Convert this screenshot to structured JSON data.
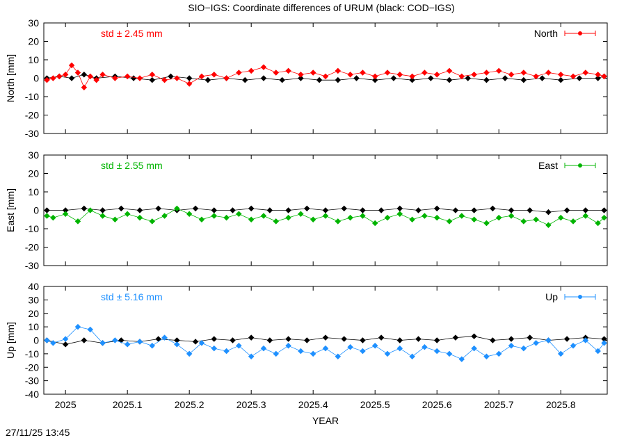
{
  "title": "SIO−IGS: Coordinate differences of URUM (black: COD−IGS)",
  "footer": {
    "timestamp": "27/11/25 13:45"
  },
  "chart_data": [
    {
      "type": "line",
      "name": "north",
      "ylabel": "North [mm]",
      "ylim": [
        -30,
        30
      ],
      "yticks": [
        -30,
        -20,
        -10,
        0,
        10,
        20,
        30
      ],
      "xlim": [
        2024.965,
        2025.875
      ],
      "std_label": "std ± 2.45 mm",
      "color": "#ff0000",
      "grid": false,
      "legend": "top-right",
      "series": [
        {
          "name": "North",
          "color": "#ff0000",
          "x": [
            2024.97,
            2024.98,
            2024.99,
            2025.0,
            2025.01,
            2025.02,
            2025.03,
            2025.04,
            2025.05,
            2025.06,
            2025.08,
            2025.1,
            2025.12,
            2025.14,
            2025.16,
            2025.18,
            2025.2,
            2025.22,
            2025.24,
            2025.26,
            2025.28,
            2025.3,
            2025.32,
            2025.34,
            2025.36,
            2025.38,
            2025.4,
            2025.42,
            2025.44,
            2025.46,
            2025.48,
            2025.5,
            2025.52,
            2025.54,
            2025.56,
            2025.58,
            2025.6,
            2025.62,
            2025.64,
            2025.66,
            2025.68,
            2025.7,
            2025.72,
            2025.74,
            2025.76,
            2025.78,
            2025.8,
            2025.82,
            2025.84,
            2025.86,
            2025.87
          ],
          "y": [
            -1,
            0,
            1,
            2,
            7,
            3,
            -5,
            1,
            -1,
            2,
            0,
            1,
            0,
            2,
            -1,
            0,
            -3,
            1,
            2,
            0,
            3,
            4,
            6,
            3,
            4,
            2,
            3,
            1,
            4,
            2,
            3,
            1,
            3,
            2,
            1,
            3,
            2,
            4,
            1,
            2,
            3,
            4,
            2,
            3,
            1,
            3,
            2,
            1,
            3,
            2,
            1
          ]
        },
        {
          "name": "COD−IGS",
          "color": "#000000",
          "x": [
            2024.97,
            2024.99,
            2025.01,
            2025.03,
            2025.05,
            2025.08,
            2025.11,
            2025.14,
            2025.17,
            2025.2,
            2025.23,
            2025.26,
            2025.29,
            2025.32,
            2025.35,
            2025.38,
            2025.41,
            2025.44,
            2025.47,
            2025.5,
            2025.53,
            2025.56,
            2025.59,
            2025.62,
            2025.65,
            2025.68,
            2025.71,
            2025.74,
            2025.77,
            2025.8,
            2025.83,
            2025.86,
            2025.87
          ],
          "y": [
            0,
            1,
            0,
            2,
            0,
            1,
            0,
            -1,
            1,
            0,
            -1,
            0,
            -1,
            0,
            -1,
            0,
            -1,
            -1,
            0,
            -1,
            0,
            -1,
            0,
            -1,
            0,
            -1,
            0,
            -1,
            0,
            -1,
            0,
            0,
            1
          ]
        }
      ]
    },
    {
      "type": "line",
      "name": "east",
      "ylabel": "East [mm]",
      "ylim": [
        -30,
        30
      ],
      "yticks": [
        -30,
        -20,
        -10,
        0,
        10,
        20,
        30
      ],
      "xlim": [
        2024.965,
        2025.875
      ],
      "std_label": "std ± 2.55 mm",
      "color": "#00b400",
      "grid": false,
      "legend": "top-right",
      "series": [
        {
          "name": "East",
          "color": "#00b400",
          "x": [
            2024.97,
            2024.98,
            2025.0,
            2025.02,
            2025.04,
            2025.06,
            2025.08,
            2025.1,
            2025.12,
            2025.14,
            2025.16,
            2025.18,
            2025.2,
            2025.22,
            2025.24,
            2025.26,
            2025.28,
            2025.3,
            2025.32,
            2025.34,
            2025.36,
            2025.38,
            2025.4,
            2025.42,
            2025.44,
            2025.46,
            2025.48,
            2025.5,
            2025.52,
            2025.54,
            2025.56,
            2025.58,
            2025.6,
            2025.62,
            2025.64,
            2025.66,
            2025.68,
            2025.7,
            2025.72,
            2025.74,
            2025.76,
            2025.78,
            2025.8,
            2025.82,
            2025.84,
            2025.86,
            2025.87
          ],
          "y": [
            -3,
            -4,
            -2,
            -6,
            0,
            -3,
            -5,
            -2,
            -4,
            -6,
            -3,
            1,
            -2,
            -5,
            -3,
            -4,
            -2,
            -5,
            -3,
            -6,
            -4,
            -2,
            -5,
            -3,
            -6,
            -4,
            -3,
            -7,
            -4,
            -2,
            -5,
            -3,
            -4,
            -6,
            -3,
            -5,
            -7,
            -4,
            -3,
            -6,
            -5,
            -8,
            -4,
            -6,
            -3,
            -7,
            -4
          ]
        },
        {
          "name": "COD−IGS",
          "color": "#000000",
          "x": [
            2024.97,
            2025.0,
            2025.03,
            2025.06,
            2025.09,
            2025.12,
            2025.15,
            2025.18,
            2025.21,
            2025.24,
            2025.27,
            2025.3,
            2025.33,
            2025.36,
            2025.39,
            2025.42,
            2025.45,
            2025.48,
            2025.51,
            2025.54,
            2025.57,
            2025.6,
            2025.63,
            2025.66,
            2025.69,
            2025.72,
            2025.75,
            2025.78,
            2025.81,
            2025.84,
            2025.87
          ],
          "y": [
            0,
            0,
            1,
            0,
            1,
            0,
            1,
            0,
            1,
            0,
            0,
            1,
            0,
            0,
            1,
            0,
            1,
            0,
            0,
            1,
            0,
            1,
            0,
            0,
            1,
            0,
            0,
            -1,
            0,
            0,
            0
          ]
        }
      ]
    },
    {
      "type": "line",
      "name": "up",
      "ylabel": "Up [mm]",
      "ylim": [
        -40,
        40
      ],
      "yticks": [
        -40,
        -30,
        -20,
        -10,
        0,
        10,
        20,
        30,
        40
      ],
      "xlim": [
        2024.965,
        2025.875
      ],
      "std_label": "std ± 5.16 mm",
      "color": "#1e90ff",
      "grid": false,
      "legend": "top-right",
      "series": [
        {
          "name": "Up",
          "color": "#1e90ff",
          "x": [
            2024.97,
            2024.98,
            2025.0,
            2025.02,
            2025.04,
            2025.06,
            2025.08,
            2025.1,
            2025.12,
            2025.14,
            2025.16,
            2025.18,
            2025.2,
            2025.22,
            2025.24,
            2025.26,
            2025.28,
            2025.3,
            2025.32,
            2025.34,
            2025.36,
            2025.38,
            2025.4,
            2025.42,
            2025.44,
            2025.46,
            2025.48,
            2025.5,
            2025.52,
            2025.54,
            2025.56,
            2025.58,
            2025.6,
            2025.62,
            2025.64,
            2025.66,
            2025.68,
            2025.7,
            2025.72,
            2025.74,
            2025.76,
            2025.78,
            2025.8,
            2025.82,
            2025.84,
            2025.86,
            2025.87
          ],
          "y": [
            0,
            -2,
            1,
            10,
            8,
            -2,
            0,
            -3,
            -1,
            -4,
            2,
            -3,
            -10,
            -2,
            -6,
            -8,
            -4,
            -12,
            -6,
            -10,
            -4,
            -8,
            -10,
            -6,
            -12,
            -5,
            -8,
            -4,
            -10,
            -6,
            -12,
            -5,
            -8,
            -10,
            -14,
            -6,
            -12,
            -10,
            -4,
            -6,
            -2,
            0,
            -10,
            -4,
            0,
            -8,
            -2
          ]
        },
        {
          "name": "COD−IGS",
          "color": "#000000",
          "x": [
            2024.97,
            2025.0,
            2025.03,
            2025.06,
            2025.09,
            2025.12,
            2025.15,
            2025.18,
            2025.21,
            2025.24,
            2025.27,
            2025.3,
            2025.33,
            2025.36,
            2025.39,
            2025.42,
            2025.45,
            2025.48,
            2025.51,
            2025.54,
            2025.57,
            2025.6,
            2025.63,
            2025.66,
            2025.69,
            2025.72,
            2025.75,
            2025.78,
            2025.81,
            2025.84,
            2025.87
          ],
          "y": [
            0,
            -3,
            0,
            -2,
            0,
            -1,
            1,
            0,
            -1,
            1,
            0,
            2,
            0,
            1,
            0,
            2,
            1,
            0,
            2,
            0,
            1,
            0,
            2,
            3,
            0,
            1,
            2,
            0,
            1,
            2,
            1
          ]
        }
      ]
    }
  ],
  "xaxis": {
    "label": "YEAR",
    "ticks": [
      2025,
      2025.1,
      2025.2,
      2025.3,
      2025.4,
      2025.5,
      2025.6,
      2025.7,
      2025.8
    ],
    "tick_labels": [
      "2025",
      "2025.1",
      "2025.2",
      "2025.3",
      "2025.4",
      "2025.5",
      "2025.6",
      "2025.7",
      "2025.8"
    ]
  }
}
